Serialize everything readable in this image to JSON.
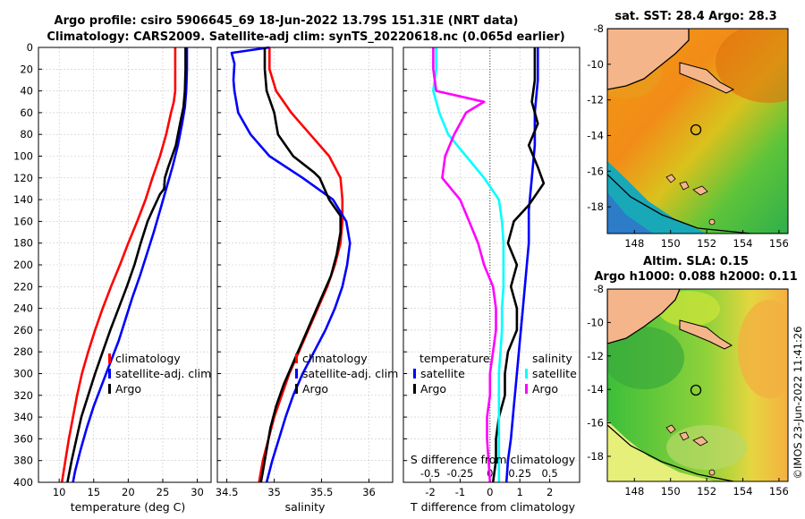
{
  "title_line1": "Argo profile: csiro 5906645_69 18-Jun-2022 13.79S 151.31E (NRT data)",
  "title_line2": "Climatology: CARS2009. Satellite-adj clim: synTS_20220618.nc (0.065d earlier)",
  "colors": {
    "climatology": "#ff0000",
    "satellite": "#0000ff",
    "argo": "#000000",
    "t_diff": "#ff00ff",
    "s_diff": "#00ffff"
  },
  "depth_axis": {
    "ticks": [
      0,
      20,
      40,
      60,
      80,
      100,
      120,
      140,
      160,
      180,
      200,
      220,
      240,
      260,
      280,
      300,
      320,
      340,
      360,
      380,
      400
    ],
    "range": [
      0,
      400
    ]
  },
  "chart_data": [
    {
      "id": "temperature",
      "type": "line",
      "xlabel": "temperature (deg C)",
      "xlim": [
        7,
        32
      ],
      "xticks": [
        10,
        15,
        20,
        25,
        30
      ],
      "ylim": [
        0,
        400
      ],
      "legend": [
        "climatology",
        "satellite-adj. clim",
        "Argo"
      ],
      "series": [
        {
          "name": "climatology",
          "color": "#ff0000",
          "points": [
            [
              26.8,
              0
            ],
            [
              26.8,
              20
            ],
            [
              26.8,
              40
            ],
            [
              26.6,
              50
            ],
            [
              26.2,
              60
            ],
            [
              25.5,
              80
            ],
            [
              24.6,
              100
            ],
            [
              23.5,
              120
            ],
            [
              22.5,
              140
            ],
            [
              21.3,
              160
            ],
            [
              20.0,
              180
            ],
            [
              18.8,
              200
            ],
            [
              17.5,
              220
            ],
            [
              16.3,
              240
            ],
            [
              15.2,
              260
            ],
            [
              14.2,
              280
            ],
            [
              13.3,
              300
            ],
            [
              12.6,
              320
            ],
            [
              12.0,
              340
            ],
            [
              11.4,
              360
            ],
            [
              10.9,
              380
            ],
            [
              10.4,
              400
            ]
          ]
        },
        {
          "name": "satellite-adj. clim",
          "color": "#0000ff",
          "points": [
            [
              28.5,
              0
            ],
            [
              28.5,
              20
            ],
            [
              28.4,
              40
            ],
            [
              28.2,
              55
            ],
            [
              27.8,
              70
            ],
            [
              27.2,
              90
            ],
            [
              26.4,
              110
            ],
            [
              25.5,
              130
            ],
            [
              24.6,
              150
            ],
            [
              23.7,
              170
            ],
            [
              22.7,
              190
            ],
            [
              21.7,
              210
            ],
            [
              20.6,
              230
            ],
            [
              19.6,
              250
            ],
            [
              18.6,
              270
            ],
            [
              17.4,
              290
            ],
            [
              16.2,
              310
            ],
            [
              15.0,
              330
            ],
            [
              14.0,
              350
            ],
            [
              13.1,
              370
            ],
            [
              12.3,
              390
            ],
            [
              12.0,
              400
            ]
          ]
        },
        {
          "name": "Argo",
          "color": "#000000",
          "points": [
            [
              28.3,
              0
            ],
            [
              28.3,
              20
            ],
            [
              28.2,
              40
            ],
            [
              28.0,
              55
            ],
            [
              27.5,
              70
            ],
            [
              26.9,
              90
            ],
            [
              25.8,
              110
            ],
            [
              25.3,
              120
            ],
            [
              25.2,
              130
            ],
            [
              24.6,
              135
            ],
            [
              23.5,
              150
            ],
            [
              22.8,
              160
            ],
            [
              21.8,
              180
            ],
            [
              20.9,
              200
            ],
            [
              19.8,
              220
            ],
            [
              18.6,
              240
            ],
            [
              17.4,
              260
            ],
            [
              16.3,
              280
            ],
            [
              15.2,
              300
            ],
            [
              14.2,
              320
            ],
            [
              13.2,
              340
            ],
            [
              12.5,
              360
            ],
            [
              11.8,
              380
            ],
            [
              11.2,
              400
            ]
          ]
        }
      ]
    },
    {
      "id": "salinity",
      "type": "line",
      "xlabel": "salinity",
      "xlim": [
        34.4,
        36.25
      ],
      "xticks": [
        34.5,
        35,
        35.5,
        36
      ],
      "xtick_labels": [
        "34.5",
        "35",
        "35.5",
        "36"
      ],
      "ylim": [
        0,
        400
      ],
      "legend": [
        "climatology",
        "satellite-adj. clim",
        "Argo"
      ],
      "series": [
        {
          "name": "climatology",
          "color": "#ff0000",
          "points": [
            [
              34.95,
              0
            ],
            [
              34.95,
              20
            ],
            [
              35.02,
              40
            ],
            [
              35.18,
              60
            ],
            [
              35.38,
              80
            ],
            [
              35.58,
              100
            ],
            [
              35.7,
              120
            ],
            [
              35.72,
              140
            ],
            [
              35.72,
              160
            ],
            [
              35.7,
              180
            ],
            [
              35.64,
              200
            ],
            [
              35.56,
              220
            ],
            [
              35.46,
              240
            ],
            [
              35.36,
              260
            ],
            [
              35.26,
              280
            ],
            [
              35.16,
              300
            ],
            [
              35.08,
              320
            ],
            [
              35.0,
              340
            ],
            [
              34.94,
              360
            ],
            [
              34.88,
              380
            ],
            [
              34.84,
              400
            ]
          ]
        },
        {
          "name": "satellite-adj. clim",
          "color": "#0000ff",
          "points": [
            [
              34.95,
              0
            ],
            [
              34.55,
              5
            ],
            [
              34.58,
              15
            ],
            [
              34.57,
              30
            ],
            [
              34.58,
              40
            ],
            [
              34.62,
              60
            ],
            [
              34.75,
              80
            ],
            [
              34.95,
              100
            ],
            [
              35.3,
              120
            ],
            [
              35.62,
              140
            ],
            [
              35.76,
              160
            ],
            [
              35.8,
              180
            ],
            [
              35.77,
              200
            ],
            [
              35.72,
              220
            ],
            [
              35.64,
              240
            ],
            [
              35.54,
              260
            ],
            [
              35.42,
              280
            ],
            [
              35.3,
              300
            ],
            [
              35.2,
              320
            ],
            [
              35.12,
              340
            ],
            [
              35.05,
              360
            ],
            [
              34.98,
              380
            ],
            [
              34.92,
              400
            ]
          ]
        },
        {
          "name": "Argo",
          "color": "#000000",
          "points": [
            [
              34.9,
              0
            ],
            [
              34.9,
              20
            ],
            [
              34.92,
              40
            ],
            [
              35.0,
              60
            ],
            [
              35.04,
              80
            ],
            [
              35.2,
              100
            ],
            [
              35.42,
              115
            ],
            [
              35.48,
              120
            ],
            [
              35.58,
              140
            ],
            [
              35.7,
              155
            ],
            [
              35.7,
              170
            ],
            [
              35.66,
              190
            ],
            [
              35.6,
              210
            ],
            [
              35.5,
              230
            ],
            [
              35.4,
              250
            ],
            [
              35.3,
              270
            ],
            [
              35.2,
              290
            ],
            [
              35.1,
              310
            ],
            [
              35.02,
              330
            ],
            [
              34.96,
              350
            ],
            [
              34.92,
              370
            ],
            [
              34.88,
              390
            ],
            [
              34.86,
              400
            ]
          ]
        }
      ]
    },
    {
      "id": "differences",
      "type": "line",
      "xlabel": "T difference from climatology",
      "xlabel2": "S difference from climatology",
      "xlim": [
        -2.9,
        3.0
      ],
      "xticks": [
        -2,
        -1,
        0,
        1,
        2
      ],
      "xtick_labels": [
        "-2",
        "-1",
        "0",
        "1",
        "2"
      ],
      "xticks2": [
        -0.5,
        -0.25,
        0,
        0.25,
        0.5
      ],
      "xtick2_labels": [
        "-0.5",
        "-0.25",
        "0",
        "0.25",
        "0.5"
      ],
      "ylim": [
        0,
        400
      ],
      "legend_left_title": "temperature",
      "legend_right_title": "salinity",
      "legend_left": [
        "satellite",
        "Argo"
      ],
      "legend_right": [
        "satellite",
        "Argo"
      ],
      "series": [
        {
          "name": "T satellite",
          "color": "#0000ff",
          "points": [
            [
              1.6,
              0
            ],
            [
              1.6,
              30
            ],
            [
              1.5,
              60
            ],
            [
              1.5,
              90
            ],
            [
              1.4,
              120
            ],
            [
              1.3,
              150
            ],
            [
              1.3,
              180
            ],
            [
              1.2,
              210
            ],
            [
              1.1,
              240
            ],
            [
              1.0,
              270
            ],
            [
              0.9,
              300
            ],
            [
              0.8,
              330
            ],
            [
              0.7,
              360
            ],
            [
              0.6,
              380
            ],
            [
              0.55,
              400
            ]
          ]
        },
        {
          "name": "T Argo",
          "color": "#000000",
          "points": [
            [
              1.5,
              0
            ],
            [
              1.5,
              30
            ],
            [
              1.4,
              50
            ],
            [
              1.6,
              70
            ],
            [
              1.3,
              90
            ],
            [
              1.6,
              110
            ],
            [
              1.8,
              125
            ],
            [
              1.3,
              145
            ],
            [
              0.8,
              160
            ],
            [
              0.6,
              180
            ],
            [
              0.9,
              200
            ],
            [
              0.7,
              220
            ],
            [
              0.9,
              240
            ],
            [
              0.9,
              260
            ],
            [
              0.6,
              280
            ],
            [
              0.5,
              300
            ],
            [
              0.5,
              320
            ],
            [
              0.3,
              340
            ],
            [
              0.2,
              360
            ],
            [
              0.2,
              380
            ],
            [
              0.1,
              400
            ]
          ]
        },
        {
          "name": "S satellite",
          "color": "#00ffff",
          "points": [
            [
              -1.8,
              0
            ],
            [
              -1.8,
              20
            ],
            [
              -1.9,
              40
            ],
            [
              -1.7,
              60
            ],
            [
              -1.4,
              80
            ],
            [
              -0.8,
              100
            ],
            [
              -0.2,
              120
            ],
            [
              0.3,
              140
            ],
            [
              0.4,
              160
            ],
            [
              0.45,
              180
            ],
            [
              0.45,
              200
            ],
            [
              0.45,
              220
            ],
            [
              0.4,
              240
            ],
            [
              0.4,
              260
            ],
            [
              0.35,
              280
            ],
            [
              0.3,
              300
            ],
            [
              0.3,
              320
            ],
            [
              0.3,
              340
            ],
            [
              0.3,
              360
            ],
            [
              0.3,
              380
            ],
            [
              0.3,
              400
            ]
          ]
        },
        {
          "name": "S Argo",
          "color": "#ff00ff",
          "points": [
            [
              -1.9,
              0
            ],
            [
              -1.9,
              20
            ],
            [
              -1.8,
              40
            ],
            [
              -0.2,
              50
            ],
            [
              -0.8,
              60
            ],
            [
              -1.2,
              80
            ],
            [
              -1.5,
              100
            ],
            [
              -1.6,
              120
            ],
            [
              -1.0,
              140
            ],
            [
              -0.7,
              160
            ],
            [
              -0.4,
              180
            ],
            [
              -0.2,
              200
            ],
            [
              0.1,
              220
            ],
            [
              0.2,
              240
            ],
            [
              0.2,
              260
            ],
            [
              0.1,
              280
            ],
            [
              0.0,
              300
            ],
            [
              0.0,
              320
            ],
            [
              -0.1,
              340
            ],
            [
              -0.1,
              360
            ],
            [
              -0.05,
              380
            ],
            [
              0.0,
              400
            ]
          ]
        }
      ]
    },
    {
      "id": "sst_map",
      "type": "heatmap",
      "title": "sat. SST: 28.4 Argo: 28.3",
      "xlim": [
        146.5,
        156.5
      ],
      "ylim": [
        -19.5,
        -8
      ],
      "xticks": [
        148,
        150,
        152,
        154,
        156
      ],
      "yticks": [
        -8,
        -10,
        -12,
        -14,
        -16,
        -18
      ],
      "marker": [
        151.31,
        -13.79
      ]
    },
    {
      "id": "sla_map",
      "type": "heatmap",
      "title_line1": "Altim. SLA: 0.15",
      "title_line2": "Argo h1000: 0.088 h2000: 0.11",
      "xlim": [
        146.5,
        156.5
      ],
      "ylim": [
        -19.5,
        -8
      ],
      "xticks": [
        148,
        150,
        152,
        154,
        156
      ],
      "yticks": [
        -8,
        -10,
        -12,
        -14,
        -16,
        -18
      ],
      "marker": [
        151.31,
        -13.79
      ]
    }
  ],
  "watermark": "©IMOS 23-Jun-2022 11:41:26"
}
